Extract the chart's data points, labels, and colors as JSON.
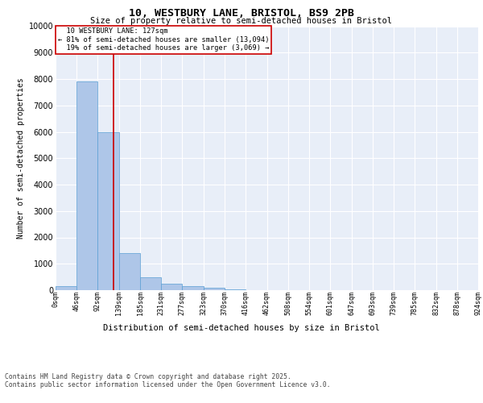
{
  "title_line1": "10, WESTBURY LANE, BRISTOL, BS9 2PB",
  "title_line2": "Size of property relative to semi-detached houses in Bristol",
  "xlabel": "Distribution of semi-detached houses by size in Bristol",
  "ylabel": "Number of semi-detached properties",
  "bar_edges": [
    0,
    46,
    92,
    139,
    185,
    231,
    277,
    323,
    370,
    416,
    462,
    508,
    554,
    601,
    647,
    693,
    739,
    785,
    832,
    878,
    924
  ],
  "bar_values": [
    150,
    7900,
    6000,
    1400,
    500,
    230,
    150,
    80,
    30,
    0,
    0,
    0,
    0,
    0,
    0,
    0,
    0,
    0,
    0,
    0
  ],
  "bar_color": "#aec6e8",
  "bar_edge_color": "#5a9fd4",
  "property_size": 127,
  "property_label": "10 WESTBURY LANE: 127sqm",
  "pct_smaller": 81,
  "count_smaller": 13094,
  "pct_larger": 19,
  "count_larger": 3069,
  "vline_color": "#cc0000",
  "annotation_box_color": "#cc0000",
  "ylim": [
    0,
    10000
  ],
  "yticks": [
    0,
    1000,
    2000,
    3000,
    4000,
    5000,
    6000,
    7000,
    8000,
    9000,
    10000
  ],
  "background_color": "#e8eef8",
  "grid_color": "#ffffff",
  "footer_line1": "Contains HM Land Registry data © Crown copyright and database right 2025.",
  "footer_line2": "Contains public sector information licensed under the Open Government Licence v3.0."
}
